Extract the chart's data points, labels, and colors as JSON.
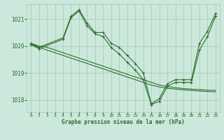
{
  "title": "Graphe pression niveau de la mer (hPa)",
  "background_color": "#cce8dc",
  "line_color": "#2d6e2d",
  "grid_color": "#a0c8b0",
  "ylim": [
    1017.55,
    1021.55
  ],
  "xlim": [
    -0.5,
    23.5
  ],
  "yticks": [
    1018,
    1019,
    1020,
    1021
  ],
  "xticks": [
    0,
    1,
    2,
    3,
    4,
    5,
    6,
    7,
    8,
    9,
    10,
    11,
    12,
    13,
    14,
    15,
    16,
    17,
    18,
    19,
    20,
    21,
    22,
    23
  ],
  "series": [
    {
      "x": [
        0,
        1,
        2,
        3,
        4,
        5,
        6,
        7,
        8,
        9,
        10,
        11,
        12,
        13,
        14,
        15,
        16,
        17,
        18,
        19,
        20,
        21,
        22,
        23
      ],
      "y": [
        1020.1,
        1020.0,
        1019.95,
        1019.85,
        1019.75,
        1019.65,
        1019.55,
        1019.45,
        1019.35,
        1019.25,
        1019.15,
        1019.05,
        1018.95,
        1018.85,
        1018.75,
        1018.65,
        1018.55,
        1018.5,
        1018.45,
        1018.42,
        1018.4,
        1018.38,
        1018.36,
        1018.35
      ],
      "marker": null,
      "linewidth": 0.8
    },
    {
      "x": [
        0,
        1,
        2,
        3,
        4,
        5,
        6,
        7,
        8,
        9,
        10,
        11,
        12,
        13,
        14,
        15,
        16,
        17,
        18,
        19,
        20,
        21,
        22,
        23
      ],
      "y": [
        1020.05,
        1019.95,
        1019.85,
        1019.75,
        1019.65,
        1019.55,
        1019.45,
        1019.35,
        1019.25,
        1019.15,
        1019.05,
        1018.95,
        1018.85,
        1018.75,
        1018.65,
        1018.55,
        1018.48,
        1018.43,
        1018.4,
        1018.37,
        1018.35,
        1018.33,
        1018.31,
        1018.3
      ],
      "marker": null,
      "linewidth": 0.8
    },
    {
      "x": [
        0,
        1,
        4,
        5,
        6,
        7,
        8,
        9,
        10,
        11,
        12,
        13,
        14,
        15,
        16,
        17,
        18,
        19,
        20,
        21,
        22,
        23
      ],
      "y": [
        1020.1,
        1019.95,
        1020.3,
        1021.1,
        1021.35,
        1020.85,
        1020.5,
        1020.5,
        1020.1,
        1019.95,
        1019.65,
        1019.35,
        1019.0,
        1017.85,
        1018.05,
        1018.6,
        1018.75,
        1018.75,
        1018.75,
        1020.1,
        1020.55,
        1021.2
      ],
      "marker": "+",
      "linewidth": 0.8
    },
    {
      "x": [
        0,
        1,
        4,
        5,
        6,
        7,
        8,
        9,
        10,
        11,
        12,
        13,
        14,
        15,
        16,
        17,
        18,
        19,
        20,
        21,
        22,
        23
      ],
      "y": [
        1020.05,
        1019.9,
        1020.25,
        1021.05,
        1021.3,
        1020.75,
        1020.45,
        1020.35,
        1019.95,
        1019.7,
        1019.4,
        1019.1,
        1018.75,
        1017.82,
        1017.95,
        1018.5,
        1018.65,
        1018.65,
        1018.65,
        1019.85,
        1020.35,
        1021.1
      ],
      "marker": "+",
      "linewidth": 0.8
    }
  ]
}
